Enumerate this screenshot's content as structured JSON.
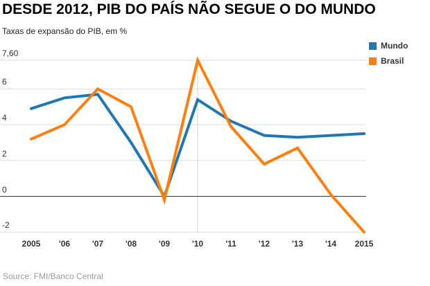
{
  "header": {
    "title": "DESDE 2012, PIB DO PAÍS NÃO SEGUE O DO MUNDO",
    "subtitle": "Taxas de expansão do PIB, em %"
  },
  "footer": {
    "source": "Source: FMI/Banco Central"
  },
  "chart_data": {
    "type": "line",
    "title": "DESDE 2012, PIB DO PAÍS NÃO SEGUE O DO MUNDO",
    "subtitle": "Taxas de expansão do PIB, em %",
    "categories": [
      "2005",
      "'06",
      "'07",
      "'08",
      "'09",
      "'10",
      "'11",
      "'12",
      "'13",
      "'14",
      "2015"
    ],
    "series": [
      {
        "name": "Mundo",
        "color": "#1f77b4",
        "values": [
          4.9,
          5.5,
          5.7,
          3.0,
          0.0,
          5.4,
          4.2,
          3.4,
          3.3,
          3.4,
          3.5
        ]
      },
      {
        "name": "Brasil",
        "color": "#ff7f0e",
        "values": [
          3.2,
          4.0,
          6.0,
          5.0,
          -0.2,
          7.6,
          3.9,
          1.8,
          2.7,
          0.1,
          -2.0
        ]
      }
    ],
    "y_gridlines": [
      {
        "value": 7.6,
        "label": "7,60"
      },
      {
        "value": 6,
        "label": "6"
      },
      {
        "value": 4,
        "label": "4"
      },
      {
        "value": 2,
        "label": "2"
      },
      {
        "value": 0,
        "label": "0"
      },
      {
        "value": -2,
        "label": "-2"
      }
    ],
    "highlighted_category": "'10",
    "highlighted_category_index": 5,
    "ylim": [
      -2.2,
      7.6
    ],
    "grid": true,
    "legend_position": "top-right",
    "colors": {
      "grid": "#dddddd",
      "highlight_line": "#d4d4d4",
      "zero_line": "#333333",
      "axis_text": "#333333",
      "source_text": "#9b9b9b"
    }
  }
}
